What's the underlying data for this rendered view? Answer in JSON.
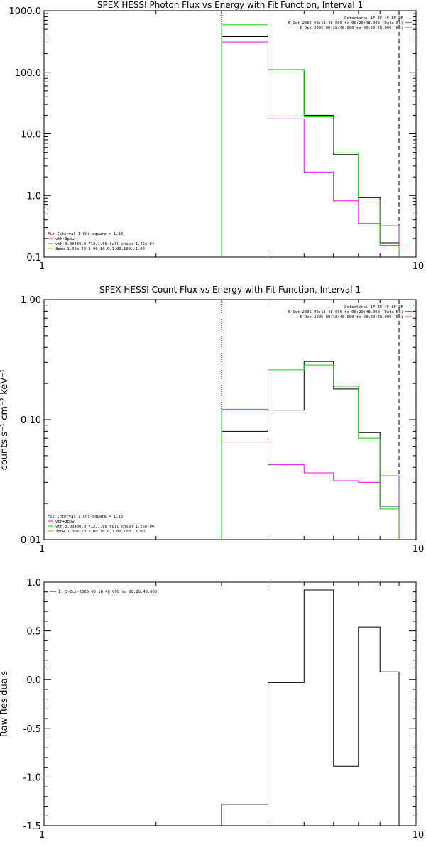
{
  "chart_data": [
    {
      "type": "line",
      "title": "SPEX HESSI Photon Flux vs Energy with Fit Function, Interval 1",
      "xlabel": "",
      "ylabel": "",
      "xscale": "log",
      "yscale": "log",
      "xlim": [
        1,
        10
      ],
      "ylim": [
        0.1,
        1000
      ],
      "xticks": [
        "1",
        "10"
      ],
      "yticks": [
        "0.1",
        "1.0",
        "10.0",
        "100.0",
        "1000.0"
      ],
      "legend_top": [
        "Detectors: 1F 3F 4F 8F 9F",
        "5-Oct-2005 00:18:48.000 to 00:20:48.000 (Data-Bk)",
        "5-Oct-2005 00:18:48.000 to 00:20:48.000 (Bk)"
      ],
      "legend_bottom": [
        {
          "label": "Fit Interval 1    Chi-square = 1.18",
          "color": ""
        },
        {
          "label": "vth+3pow",
          "color": "#e010e0"
        },
        {
          "label": "vth 0.00436,0.712,1.00   full chian 1.26e-04",
          "color": "#00d000"
        },
        {
          "label": "3pow 1.00e-20,1.00,10.0,1.00,100.,1.00",
          "color": "#d0a000"
        }
      ],
      "vlines": [
        {
          "x": 3.0,
          "style": "dotted"
        },
        {
          "x": 9.0,
          "style": "dashed"
        }
      ],
      "edges": [
        3.0,
        4.0,
        5.0,
        6.0,
        7.0,
        8.0,
        9.0
      ],
      "series": [
        {
          "color": "#000000",
          "values": [
            380,
            110,
            20,
            4.6,
            0.92,
            0.17
          ]
        },
        {
          "color": "#e010e0",
          "values": [
            310,
            17.5,
            2.4,
            0.82,
            0.35,
            0.32
          ]
        },
        {
          "color": "#00d000",
          "values": [
            590,
            110,
            19,
            4.9,
            0.85,
            0.155
          ]
        }
      ]
    },
    {
      "type": "line",
      "title": "SPEX HESSI Count Flux vs Energy with Fit Function, Interval 1",
      "xlabel": "",
      "ylabel": "counts s⁻¹ cm⁻² keV⁻¹",
      "xscale": "log",
      "yscale": "log",
      "xlim": [
        1,
        10
      ],
      "ylim": [
        0.01,
        1.0
      ],
      "xticks": [
        "1",
        "10"
      ],
      "yticks": [
        "0.01",
        "0.10",
        "1.00"
      ],
      "legend_top": [
        "Detectors: 1F 3F 4F 8F 9F",
        "5-Oct-2005 00:18:48.000 to 00:20:48.000 (Data-Bk)",
        "5-Oct-2005 00:18:48.000 to 00:20:48.000 (Bk)"
      ],
      "legend_bottom": [
        {
          "label": "Fit Interval 1    Chi-square = 1.18",
          "color": ""
        },
        {
          "label": "vth+3pow",
          "color": "#e010e0"
        },
        {
          "label": "vth 0.00436,0.712,1.00   full chian 1.26e-04",
          "color": "#00d000"
        },
        {
          "label": "3pow 1.00e-20,1.00,10.0,1.00,100.,1.00",
          "color": "#d0a000"
        }
      ],
      "vlines": [
        {
          "x": 3.0,
          "style": "dotted"
        },
        {
          "x": 9.0,
          "style": "dashed"
        }
      ],
      "edges": [
        3.0,
        4.0,
        5.0,
        6.0,
        7.0,
        8.0,
        9.0
      ],
      "series": [
        {
          "color": "#000000",
          "values": [
            0.08,
            0.12,
            0.305,
            0.18,
            0.078,
            0.019
          ]
        },
        {
          "color": "#e010e0",
          "values": [
            0.065,
            0.042,
            0.036,
            0.031,
            0.03,
            0.034
          ]
        },
        {
          "color": "#00d000",
          "values": [
            0.122,
            0.26,
            0.285,
            0.19,
            0.07,
            0.018
          ]
        }
      ]
    },
    {
      "type": "line",
      "title": "",
      "xlabel": "",
      "ylabel": "Raw Residuals",
      "xscale": "log",
      "yscale": "linear",
      "xlim": [
        1,
        10
      ],
      "ylim": [
        -1.5,
        1.0
      ],
      "xticks": [
        "1",
        "10"
      ],
      "yticks": [
        "-1.5",
        "-1.0",
        "-0.5",
        "0.0",
        "0.5",
        "1.0"
      ],
      "legend_top_left": "1.  5-Oct-2005 00:18:48.000 to 00:20:48.000",
      "edges": [
        3.0,
        4.0,
        5.0,
        6.0,
        7.0,
        8.0,
        9.0
      ],
      "series": [
        {
          "color": "#000000",
          "values": [
            -1.28,
            -0.03,
            0.92,
            -0.89,
            0.54,
            0.08
          ]
        }
      ]
    }
  ]
}
